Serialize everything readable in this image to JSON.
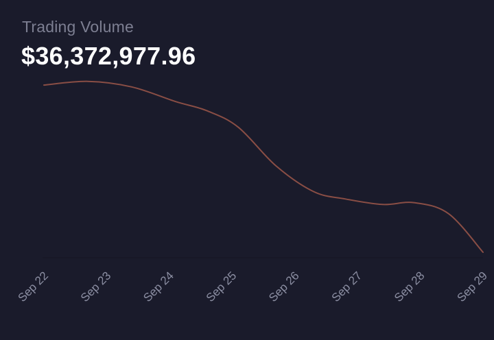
{
  "header": {
    "title": "Trading Volume",
    "value": "$36,372,977.96"
  },
  "colors": {
    "background": "#1a1b2b",
    "line": "#8a4e45",
    "baseline": "#151623",
    "tick_text": "#8c8fa3",
    "title_text": "#7d7f92",
    "value_text": "#ffffff"
  },
  "chart_data": {
    "type": "line",
    "title": "Trading Volume",
    "xlabel": "",
    "ylabel": "",
    "grid": false,
    "legend": "none",
    "categories": [
      "Sep 22",
      "Sep 23",
      "Sep 24",
      "Sep 25",
      "Sep 26",
      "Sep 27",
      "Sep 28",
      "Sep 29"
    ],
    "ylim": [
      0,
      100
    ],
    "series": [
      {
        "values": [
          {
            "x": 0.0,
            "y": 94
          },
          {
            "x": 0.7,
            "y": 96
          },
          {
            "x": 1.4,
            "y": 93
          },
          {
            "x": 2.1,
            "y": 85
          },
          {
            "x": 2.6,
            "y": 80
          },
          {
            "x": 3.1,
            "y": 71
          },
          {
            "x": 3.7,
            "y": 50
          },
          {
            "x": 4.3,
            "y": 36
          },
          {
            "x": 4.8,
            "y": 32
          },
          {
            "x": 5.4,
            "y": 29
          },
          {
            "x": 5.9,
            "y": 30
          },
          {
            "x": 6.45,
            "y": 24
          },
          {
            "x": 7.0,
            "y": 3
          }
        ]
      }
    ]
  }
}
